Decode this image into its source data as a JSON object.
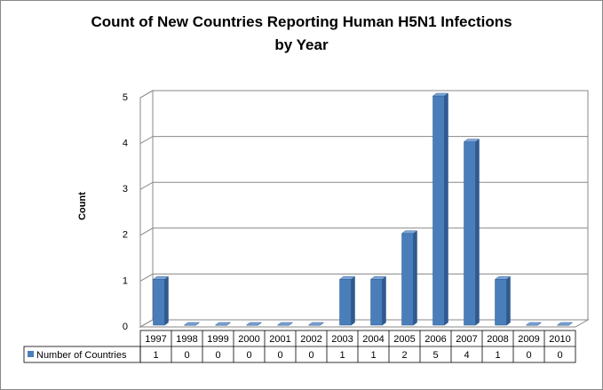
{
  "chart_data": {
    "type": "bar3d",
    "title": "Count of New Countries Reporting Human H5N1 Infections\nby Year",
    "y_label": "Count",
    "categories": [
      "1997",
      "1998",
      "1999",
      "2000",
      "2001",
      "2002",
      "2003",
      "2004",
      "2005",
      "2006",
      "2007",
      "2008",
      "2009",
      "2010"
    ],
    "series": [
      {
        "name": "Number of Countries",
        "color": "#4a7ebb",
        "values": [
          1,
          0,
          0,
          0,
          0,
          0,
          1,
          1,
          2,
          5,
          4,
          1,
          0,
          0
        ]
      }
    ],
    "ylim": [
      0,
      5
    ],
    "yticks": [
      0,
      1,
      2,
      3,
      4,
      5
    ],
    "grid": true,
    "data_table": true
  }
}
